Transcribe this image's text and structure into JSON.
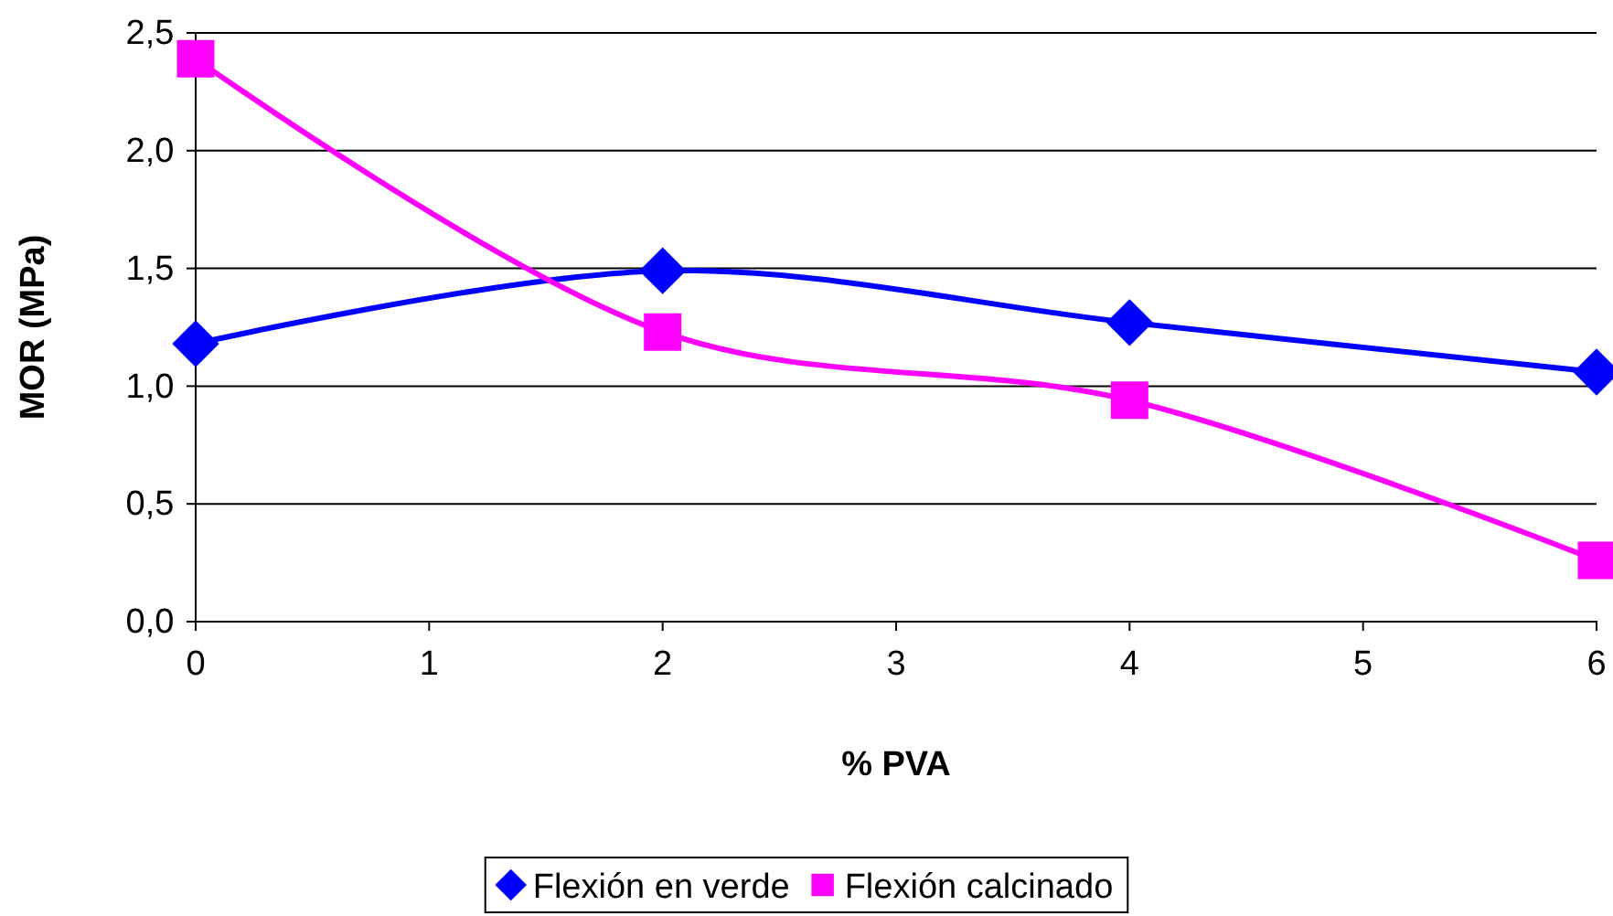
{
  "chart_data": {
    "type": "line",
    "xlabel": "% PVA",
    "ylabel": "MOR (MPa)",
    "xlim": [
      0,
      6
    ],
    "xticks": [
      0,
      1,
      2,
      3,
      4,
      5,
      6
    ],
    "ylim": [
      0,
      2.5
    ],
    "yticks": [
      {
        "value": 0,
        "label": "0,0"
      },
      {
        "value": 0.5,
        "label": "0,5"
      },
      {
        "value": 1,
        "label": "1,0"
      },
      {
        "value": 1.5,
        "label": "1,5"
      },
      {
        "value": 2,
        "label": "2,0"
      },
      {
        "value": 2.5,
        "label": "2,5"
      }
    ],
    "grid": "y",
    "legend": "bottom",
    "series": [
      {
        "name": "Flexión en verde",
        "color": "#0000ff",
        "marker": "diamond",
        "x": [
          0,
          2,
          4,
          6
        ],
        "values": [
          1.18,
          1.49,
          1.27,
          1.06
        ]
      },
      {
        "name": "Flexión calcinado",
        "color": "#ff00ff",
        "marker": "square",
        "x": [
          0,
          2,
          4,
          6
        ],
        "values": [
          2.39,
          1.23,
          0.94,
          0.26
        ]
      }
    ]
  }
}
